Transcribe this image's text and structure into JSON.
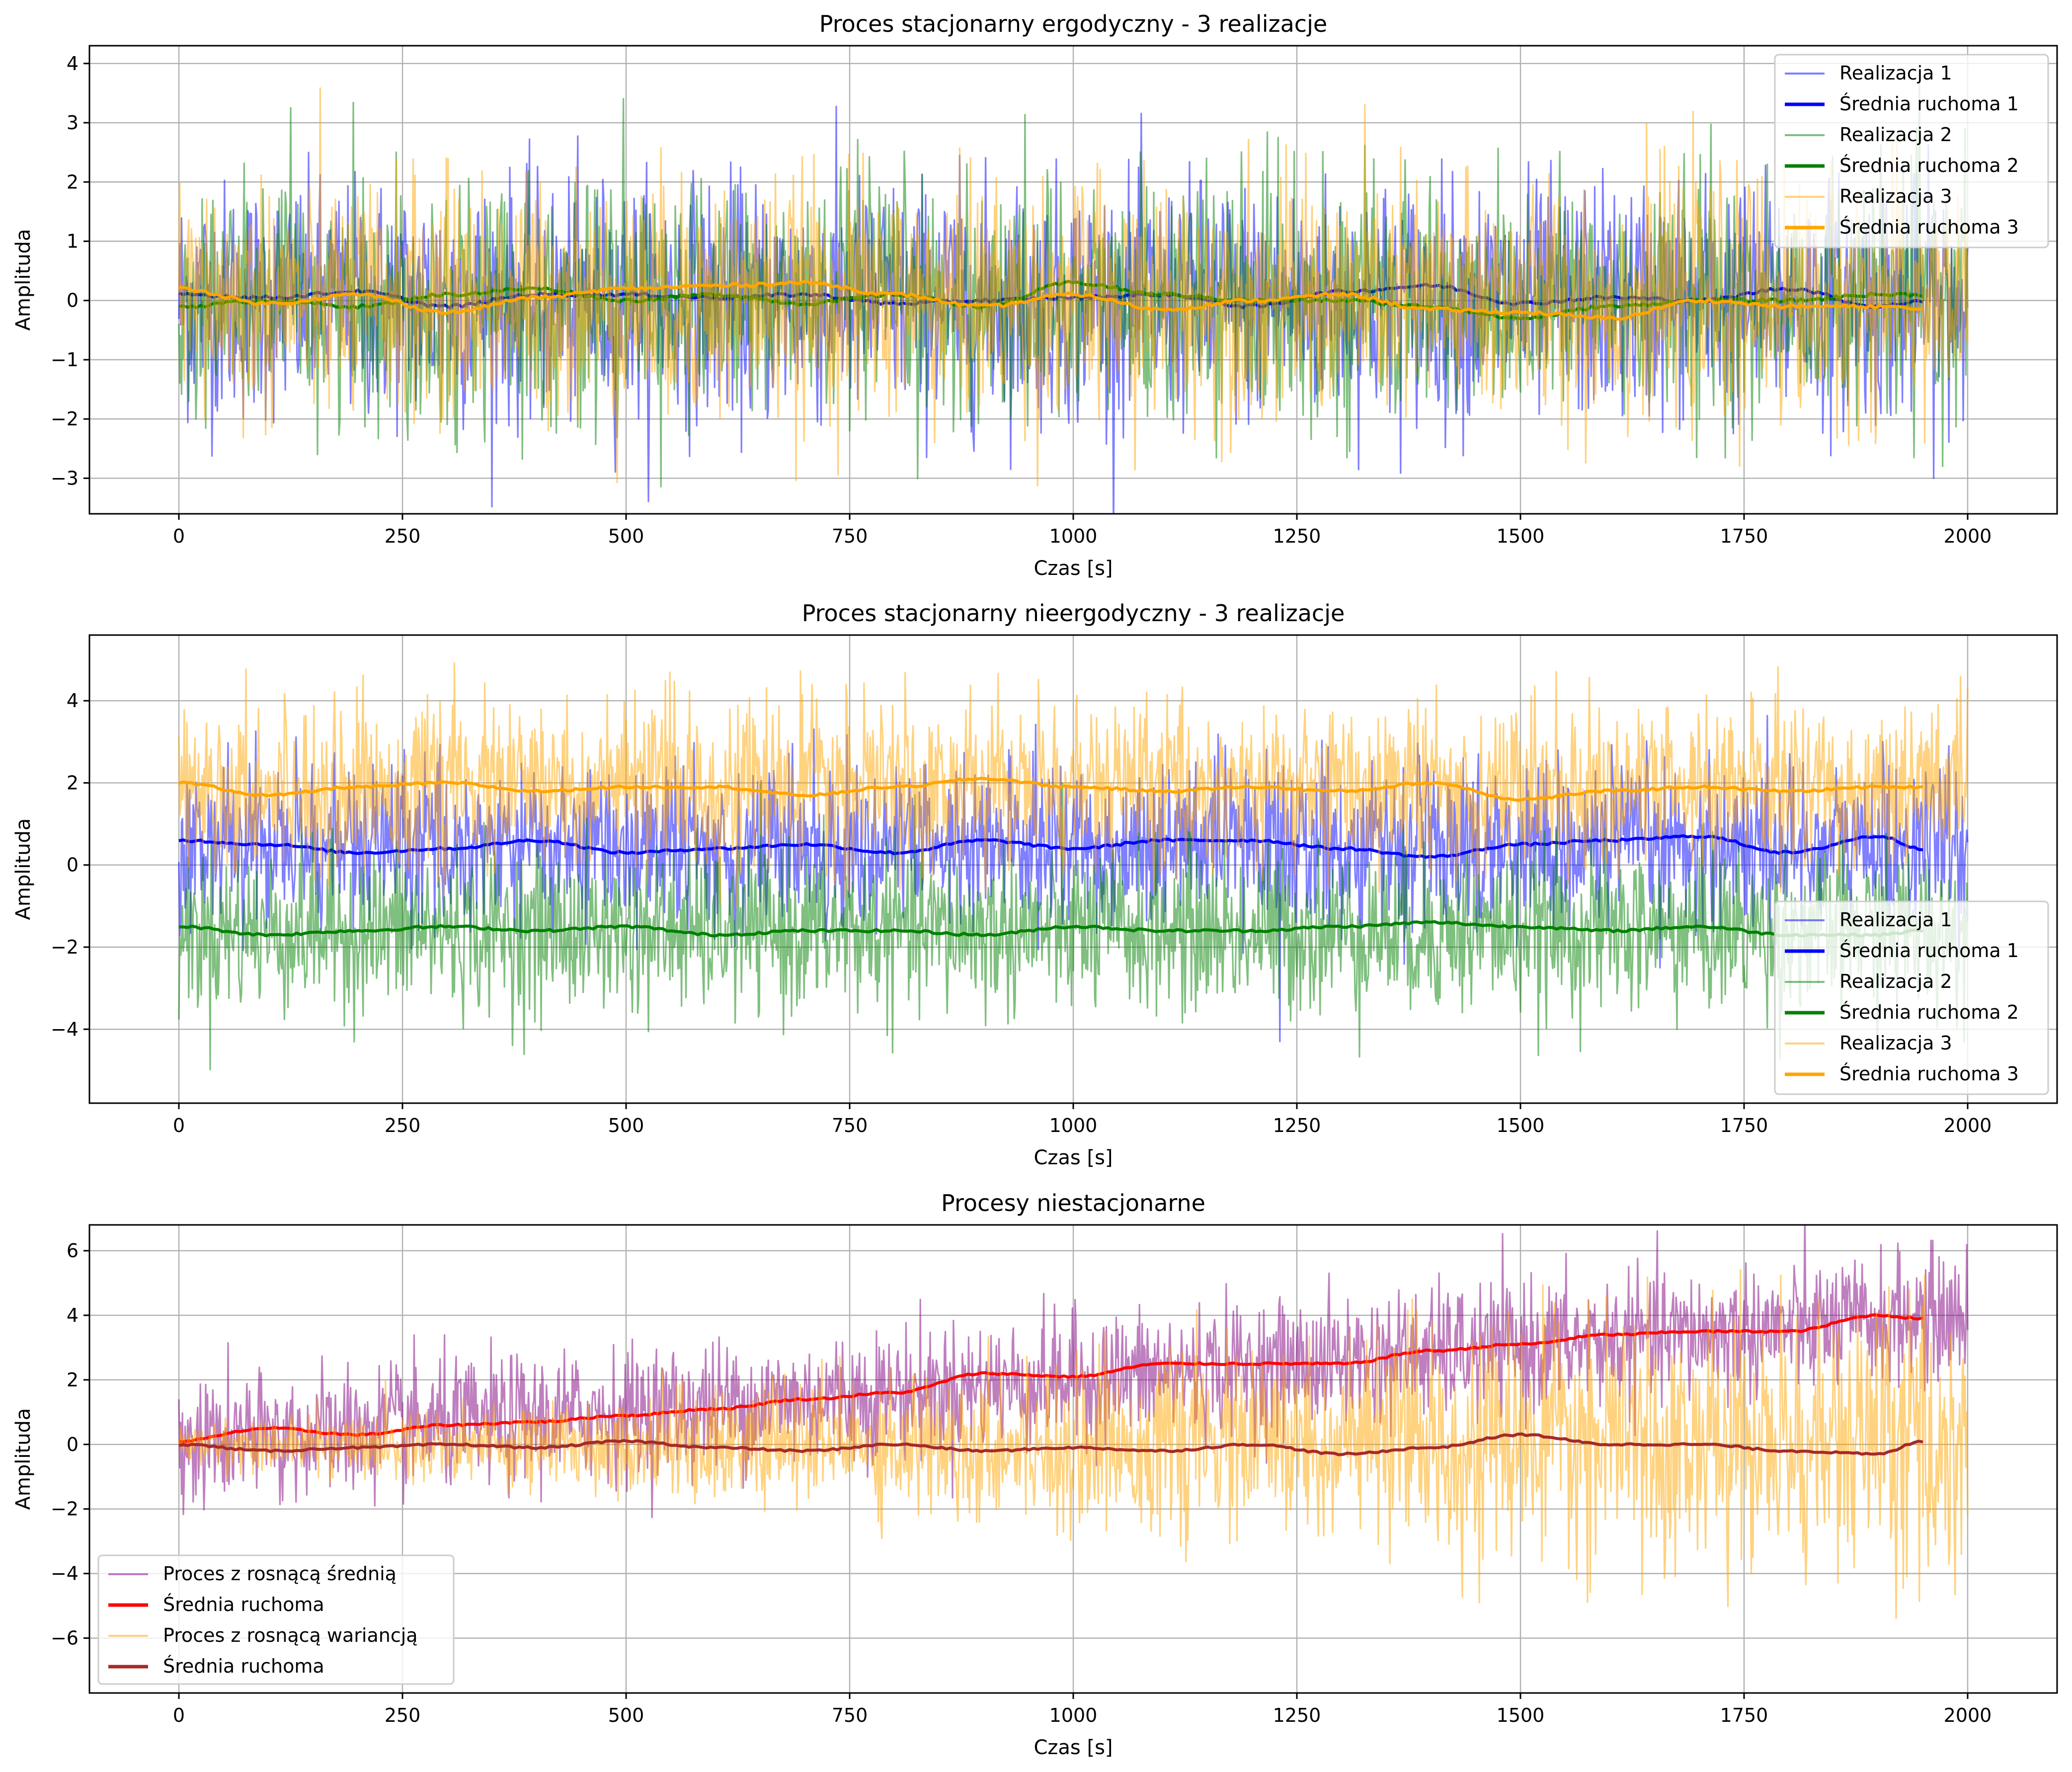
{
  "chart_data": [
    {
      "type": "line",
      "title": "Proces stacjonarny ergodyczny - 3 realizacje",
      "xlabel": "Czas [s]",
      "ylabel": "Amplituda",
      "xlim": [
        -100,
        2100
      ],
      "ylim": [
        -3.6,
        4.3
      ],
      "xticks": [
        0,
        250,
        500,
        750,
        1000,
        1250,
        1500,
        1750,
        2000
      ],
      "yticks": [
        -3,
        -2,
        -1,
        0,
        1,
        2,
        3,
        4
      ],
      "grid": true,
      "legend_position": "upper right",
      "series": [
        {
          "name": "Realizacja 1",
          "kind": "noise",
          "color": "#0000ff",
          "opacity": 0.5,
          "start": 0,
          "end": 2000,
          "mean": 0,
          "sigma": 1,
          "x": [
            0,
            500,
            1000,
            1500,
            2000
          ],
          "y": [
            0,
            0,
            0,
            0,
            0
          ]
        },
        {
          "name": "Średnia ruchoma 1",
          "kind": "smooth",
          "color": "#0000ff",
          "opacity": 1,
          "x": [
            0,
            100,
            200,
            300,
            400,
            500,
            600,
            700,
            800,
            900,
            1000,
            1100,
            1200,
            1300,
            1400,
            1500,
            1600,
            1700,
            1800,
            1900,
            1950
          ],
          "y": [
            0.1,
            0.05,
            0.15,
            -0.1,
            0.1,
            0.1,
            0.05,
            0.1,
            -0.05,
            0.0,
            0.05,
            0.1,
            -0.1,
            0.15,
            0.25,
            -0.05,
            0.05,
            0.0,
            0.2,
            -0.1,
            0.0
          ]
        },
        {
          "name": "Realizacja 2",
          "kind": "noise",
          "color": "#008000",
          "opacity": 0.5,
          "start": 0,
          "end": 2000,
          "mean": 0,
          "sigma": 1,
          "x": [
            0,
            500,
            1000,
            1500,
            2000
          ],
          "y": [
            0,
            0,
            0,
            0,
            0
          ]
        },
        {
          "name": "Średnia ruchoma 2",
          "kind": "smooth",
          "color": "#008000",
          "opacity": 1,
          "x": [
            0,
            100,
            200,
            300,
            400,
            500,
            600,
            700,
            800,
            900,
            1000,
            1100,
            1200,
            1300,
            1400,
            1500,
            1600,
            1700,
            1800,
            1900,
            1950
          ],
          "y": [
            -0.1,
            0.0,
            -0.1,
            0.1,
            0.2,
            0.0,
            0.1,
            -0.05,
            0.1,
            -0.1,
            0.3,
            0.1,
            0.0,
            0.0,
            -0.1,
            -0.3,
            -0.1,
            0.0,
            0.0,
            0.1,
            0.1
          ]
        },
        {
          "name": "Realizacja 3",
          "kind": "noise",
          "color": "#ffa500",
          "opacity": 0.5,
          "start": 0,
          "end": 2000,
          "mean": 0,
          "sigma": 1,
          "x": [
            0,
            500,
            1000,
            1500,
            2000
          ],
          "y": [
            0,
            0,
            0,
            0,
            0
          ]
        },
        {
          "name": "Średnia ruchoma 3",
          "kind": "smooth",
          "color": "#ffa500",
          "opacity": 1,
          "x": [
            0,
            100,
            200,
            300,
            400,
            500,
            600,
            700,
            800,
            900,
            1000,
            1100,
            1200,
            1300,
            1400,
            1500,
            1600,
            1700,
            1800,
            1900,
            1950
          ],
          "y": [
            0.2,
            -0.05,
            0.1,
            -0.2,
            0.05,
            0.2,
            0.25,
            0.3,
            0.1,
            -0.1,
            0.1,
            -0.15,
            0.0,
            0.1,
            -0.15,
            -0.2,
            -0.3,
            0.0,
            -0.1,
            -0.1,
            -0.15
          ]
        }
      ]
    },
    {
      "type": "line",
      "title": "Proces stacjonarny nieergodyczny - 3 realizacje",
      "xlabel": "Czas [s]",
      "ylabel": "Amplituda",
      "xlim": [
        -100,
        2100
      ],
      "ylim": [
        -5.8,
        5.6
      ],
      "xticks": [
        0,
        250,
        500,
        750,
        1000,
        1250,
        1500,
        1750,
        2000
      ],
      "yticks": [
        -4,
        -2,
        0,
        2,
        4
      ],
      "grid": true,
      "legend_position": "lower right",
      "series": [
        {
          "name": "Realizacja 1",
          "kind": "noise",
          "color": "#0000ff",
          "opacity": 0.5,
          "start": 0,
          "end": 2000,
          "mean": 0.5,
          "sigma": 1,
          "x": [
            0,
            500,
            1000,
            1500,
            2000
          ],
          "y": [
            0.5,
            0.5,
            0.5,
            0.5,
            0.5
          ]
        },
        {
          "name": "Średnia ruchoma 1",
          "kind": "smooth",
          "color": "#0000ff",
          "opacity": 1,
          "x": [
            0,
            100,
            200,
            300,
            400,
            500,
            600,
            700,
            800,
            900,
            1000,
            1100,
            1200,
            1300,
            1400,
            1500,
            1600,
            1700,
            1800,
            1900,
            1950
          ],
          "y": [
            0.6,
            0.5,
            0.3,
            0.4,
            0.6,
            0.3,
            0.4,
            0.5,
            0.3,
            0.6,
            0.4,
            0.6,
            0.6,
            0.4,
            0.2,
            0.5,
            0.6,
            0.7,
            0.3,
            0.7,
            0.4
          ]
        },
        {
          "name": "Realizacja 2",
          "kind": "noise",
          "color": "#008000",
          "opacity": 0.5,
          "start": 0,
          "end": 2000,
          "mean": -1.6,
          "sigma": 1,
          "x": [
            0,
            500,
            1000,
            1500,
            2000
          ],
          "y": [
            -1.6,
            -1.6,
            -1.6,
            -1.6,
            -1.6
          ]
        },
        {
          "name": "Średnia ruchoma 2",
          "kind": "smooth",
          "color": "#008000",
          "opacity": 1,
          "x": [
            0,
            100,
            200,
            300,
            400,
            500,
            600,
            700,
            800,
            900,
            1000,
            1100,
            1200,
            1300,
            1400,
            1500,
            1600,
            1700,
            1800,
            1900,
            1950
          ],
          "y": [
            -1.5,
            -1.7,
            -1.6,
            -1.5,
            -1.6,
            -1.5,
            -1.7,
            -1.6,
            -1.6,
            -1.7,
            -1.5,
            -1.6,
            -1.6,
            -1.5,
            -1.4,
            -1.5,
            -1.6,
            -1.5,
            -1.7,
            -1.7,
            -1.6
          ]
        },
        {
          "name": "Realizacja 3",
          "kind": "noise",
          "color": "#ffa500",
          "opacity": 0.5,
          "start": 0,
          "end": 2000,
          "mean": 1.9,
          "sigma": 1,
          "x": [
            0,
            500,
            1000,
            1500,
            2000
          ],
          "y": [
            1.9,
            1.9,
            1.9,
            1.9,
            1.9
          ]
        },
        {
          "name": "Średnia ruchoma 3",
          "kind": "smooth",
          "color": "#ffa500",
          "opacity": 1,
          "x": [
            0,
            100,
            200,
            300,
            400,
            500,
            600,
            700,
            800,
            900,
            1000,
            1100,
            1200,
            1300,
            1400,
            1500,
            1600,
            1700,
            1800,
            1900,
            1950
          ],
          "y": [
            2.0,
            1.7,
            1.9,
            2.0,
            1.8,
            1.9,
            1.9,
            1.7,
            1.9,
            2.1,
            1.9,
            1.8,
            1.9,
            1.8,
            2.0,
            1.6,
            1.8,
            1.9,
            1.8,
            1.9,
            1.9
          ]
        }
      ]
    },
    {
      "type": "line",
      "title": "Procesy niestacjonarne",
      "xlabel": "Czas [s]",
      "ylabel": "Amplituda",
      "xlim": [
        -100,
        2100
      ],
      "ylim": [
        -7.7,
        6.8
      ],
      "xticks": [
        0,
        250,
        500,
        750,
        1000,
        1250,
        1500,
        1750,
        2000
      ],
      "yticks": [
        -6,
        -4,
        -2,
        0,
        2,
        4,
        6
      ],
      "grid": true,
      "legend_position": "lower left",
      "series": [
        {
          "name": "Proces z rosnącą średnią",
          "kind": "noise",
          "color": "#800080",
          "opacity": 0.5,
          "start": 0,
          "end": 2000,
          "mean": 0,
          "mean_end": 4,
          "sigma": 1,
          "x": [
            0,
            500,
            1000,
            1500,
            2000
          ],
          "y": [
            0,
            1,
            2,
            3,
            4
          ]
        },
        {
          "name": "Średnia ruchoma",
          "kind": "smooth",
          "color": "#ff0000",
          "opacity": 1,
          "x": [
            0,
            100,
            200,
            300,
            400,
            500,
            600,
            700,
            800,
            900,
            1000,
            1100,
            1200,
            1300,
            1400,
            1500,
            1600,
            1700,
            1800,
            1900,
            1950
          ],
          "y": [
            0.1,
            0.5,
            0.3,
            0.6,
            0.7,
            0.9,
            1.1,
            1.4,
            1.6,
            2.2,
            2.1,
            2.5,
            2.5,
            2.5,
            2.9,
            3.1,
            3.4,
            3.5,
            3.5,
            4.0,
            3.9
          ]
        },
        {
          "name": "Proces z rosnącą wariancją",
          "kind": "noise",
          "color": "#ffa500",
          "opacity": 0.5,
          "start": 0,
          "end": 2000,
          "mean": 0,
          "sigma": 0.3,
          "sigma_end": 2.2,
          "x": [
            0,
            500,
            1000,
            1500,
            2000
          ],
          "y": [
            0,
            0,
            0,
            0,
            0
          ]
        },
        {
          "name": "Średnia ruchoma",
          "kind": "smooth",
          "color": "#a52a2a",
          "opacity": 1,
          "x": [
            0,
            100,
            200,
            300,
            400,
            500,
            600,
            700,
            800,
            900,
            1000,
            1100,
            1200,
            1300,
            1400,
            1500,
            1600,
            1700,
            1800,
            1900,
            1950
          ],
          "y": [
            0.0,
            -0.2,
            -0.1,
            0.0,
            -0.1,
            0.1,
            -0.1,
            -0.2,
            0.0,
            -0.2,
            -0.1,
            -0.2,
            0.0,
            -0.3,
            -0.1,
            0.3,
            0.0,
            0.0,
            -0.2,
            -0.3,
            0.1
          ]
        }
      ]
    }
  ]
}
